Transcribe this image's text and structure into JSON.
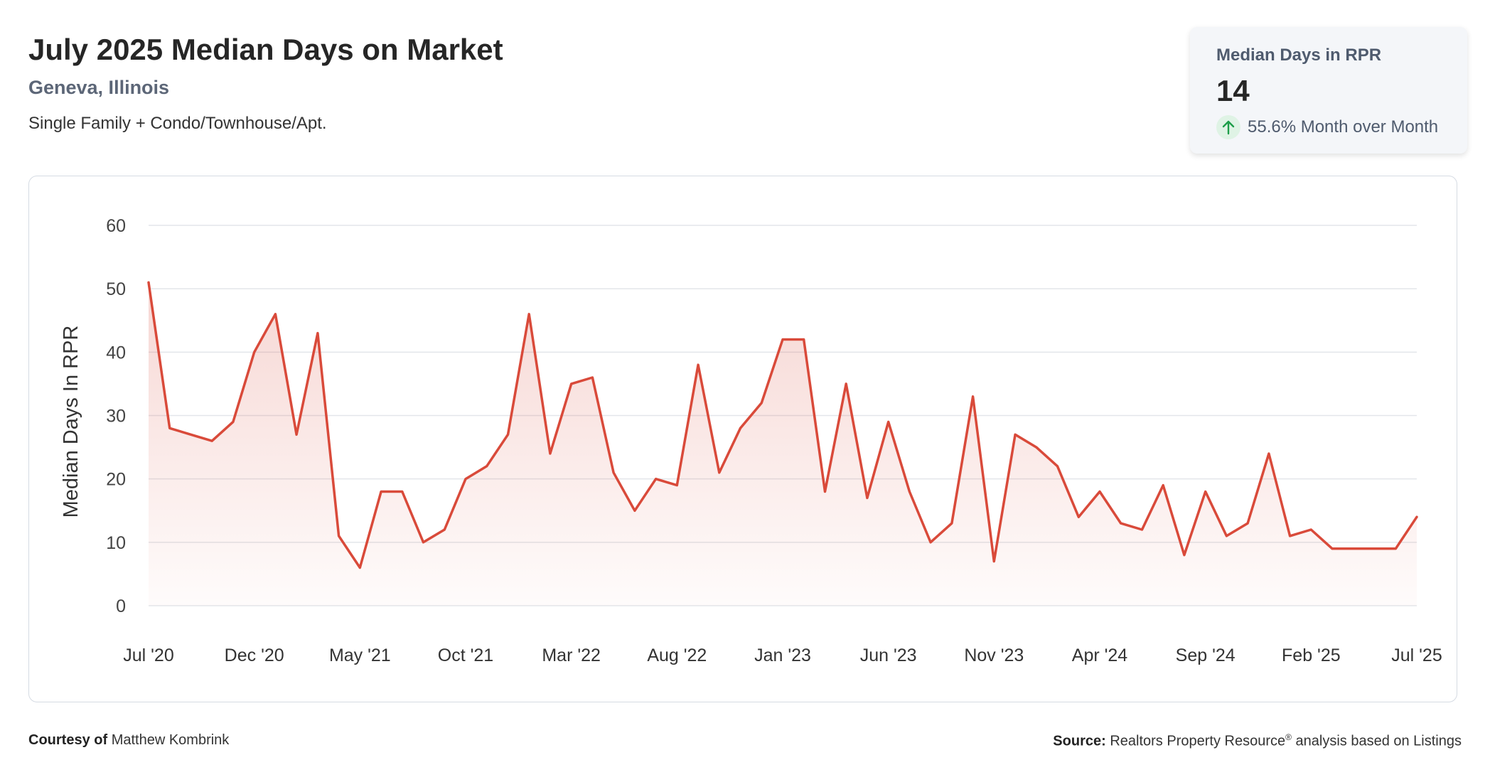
{
  "header": {
    "title": "July 2025 Median Days on Market",
    "location": "Geneva, Illinois",
    "property_types": "Single Family + Condo/Townhouse/Apt."
  },
  "stat_card": {
    "label": "Median Days in RPR",
    "value": "14",
    "change": "55.6% Month over Month",
    "change_icon": "arrow-up-icon",
    "change_color": "#1e9e4a"
  },
  "footer": {
    "courtesy_label": "Courtesy of",
    "courtesy_name": "Matthew Kombrink",
    "source_label": "Source:",
    "source_text_1": "Realtors Property Resource",
    "source_mark": "®",
    "source_text_2": " analysis based on Listings"
  },
  "colors": {
    "line": "#d94a3a",
    "fill": "#d94a3a",
    "grid": "#e3e6ea",
    "axis_text": "#444444"
  },
  "chart_data": {
    "type": "area",
    "ylabel": "Median Days In RPR",
    "xlabel": "",
    "ylim": [
      0,
      60
    ],
    "yticks": [
      0,
      10,
      20,
      30,
      40,
      50,
      60
    ],
    "grid": true,
    "legend": "none",
    "x_tick_labels": [
      "Jul '20",
      "Dec '20",
      "May '21",
      "Oct '21",
      "Mar '22",
      "Aug '22",
      "Jan '23",
      "Jun '23",
      "Nov '23",
      "Apr '24",
      "Sep '24",
      "Feb '25",
      "Jul '25"
    ],
    "x_tick_every": 5,
    "series": [
      {
        "values": [
          51,
          28,
          27,
          26,
          29,
          40,
          46,
          27,
          43,
          11,
          6,
          18,
          18,
          10,
          12,
          20,
          22,
          27,
          46,
          24,
          35,
          36,
          21,
          15,
          20,
          19,
          38,
          21,
          28,
          32,
          42,
          42,
          18,
          35,
          17,
          29,
          18,
          10,
          13,
          33,
          7,
          27,
          25,
          22,
          14,
          18,
          13,
          12,
          19,
          8,
          18,
          11,
          13,
          24,
          11,
          12,
          9,
          9,
          9,
          9,
          14
        ]
      }
    ]
  }
}
